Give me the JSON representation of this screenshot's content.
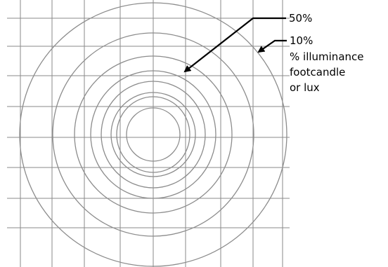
{
  "callouts": {
    "inner": {
      "percent": "50%"
    },
    "outer": {
      "percent": "10%",
      "note_lines": [
        "% illuminance",
        "footcandle",
        "or lux"
      ]
    }
  },
  "colors": {
    "grid": "#8a8a8a",
    "contour": "#8c8c8c",
    "callout": "#000000",
    "background": "#ffffff"
  },
  "contour_count": 8,
  "grid": {
    "columns": 9,
    "rows": 8
  }
}
